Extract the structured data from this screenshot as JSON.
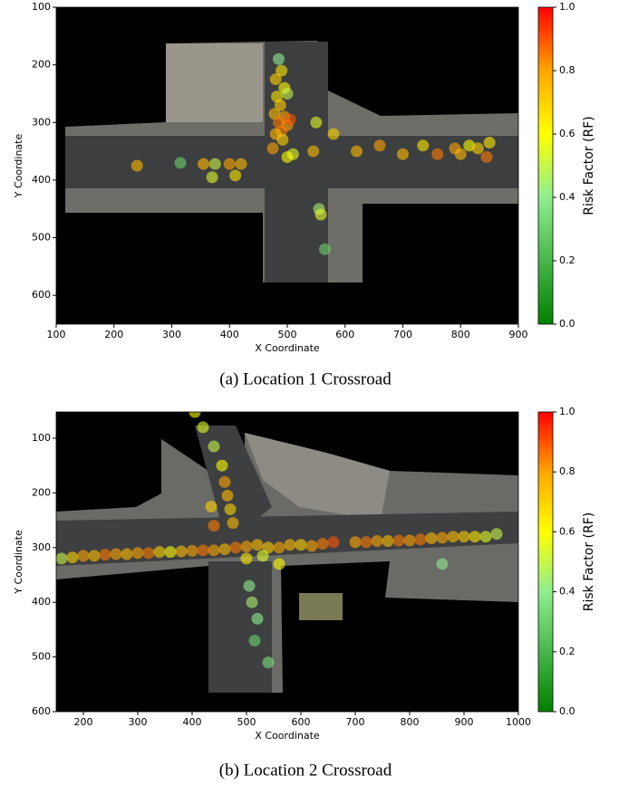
{
  "chart_data": [
    {
      "type": "scatter",
      "caption": "(a) Location 1 Crossroad",
      "x_label": "X Coordinate",
      "y_label": "Y Coordinate",
      "xlim": [
        100,
        900
      ],
      "ylim": [
        650,
        100
      ],
      "xticks": [
        100,
        200,
        300,
        400,
        500,
        600,
        700,
        800,
        900
      ],
      "yticks": [
        100,
        200,
        300,
        400,
        500,
        600
      ],
      "colorbar": {
        "label": "Risk Factor (RF)",
        "lim": [
          0,
          1
        ],
        "ticks": [
          {
            "value": 0,
            "label": "0.0"
          },
          {
            "value": 0.2,
            "label": "0.2"
          },
          {
            "value": 0.4,
            "label": "0.4"
          },
          {
            "value": 0.6,
            "label": "0.6"
          },
          {
            "value": 0.8,
            "label": "0.8"
          },
          {
            "value": 1,
            "label": "1.0"
          }
        ]
      },
      "x": [
        485,
        490,
        480,
        495,
        482,
        500,
        488,
        478,
        495,
        485,
        500,
        490,
        480,
        505,
        492,
        475,
        510,
        545,
        500,
        240,
        315,
        355,
        375,
        400,
        420,
        370,
        410,
        555,
        558,
        565,
        620,
        660,
        700,
        735,
        760,
        790,
        800,
        815,
        830,
        850,
        845,
        580,
        550
      ],
      "values": [
        190,
        210,
        225,
        240,
        255,
        250,
        270,
        285,
        290,
        300,
        305,
        315,
        320,
        295,
        330,
        345,
        355,
        350,
        360,
        375,
        370,
        372,
        372,
        372,
        372,
        395,
        392,
        450,
        460,
        520,
        350,
        340,
        355,
        340,
        355,
        345,
        355,
        340,
        345,
        335,
        360,
        320,
        300
      ],
      "risk": [
        0.4,
        0.65,
        0.7,
        0.6,
        0.65,
        0.5,
        0.7,
        0.75,
        0.8,
        0.85,
        0.8,
        0.85,
        0.75,
        0.9,
        0.7,
        0.8,
        0.55,
        0.75,
        0.6,
        0.75,
        0.3,
        0.75,
        0.5,
        0.8,
        0.75,
        0.55,
        0.65,
        0.45,
        0.55,
        0.3,
        0.75,
        0.8,
        0.75,
        0.65,
        0.85,
        0.8,
        0.75,
        0.6,
        0.7,
        0.65,
        0.85,
        0.7,
        0.55
      ]
    },
    {
      "type": "scatter",
      "caption": "(b) Location 2 Crossroad",
      "x_label": "X Coordinate",
      "y_label": "Y Coordinate",
      "xlim": [
        150,
        1000
      ],
      "ylim": [
        600,
        52
      ],
      "xticks": [
        200,
        300,
        400,
        500,
        600,
        700,
        800,
        900,
        1000
      ],
      "yticks": [
        100,
        200,
        300,
        400,
        500,
        600
      ],
      "colorbar": {
        "label": "Risk Factor (RF)",
        "lim": [
          0,
          1
        ],
        "ticks": [
          {
            "value": 0,
            "label": "0.0"
          },
          {
            "value": 0.2,
            "label": "0.2"
          },
          {
            "value": 0.4,
            "label": "0.4"
          },
          {
            "value": 0.6,
            "label": "0.6"
          },
          {
            "value": 0.8,
            "label": "0.8"
          },
          {
            "value": 1,
            "label": "1.0"
          }
        ]
      },
      "x": [
        160,
        180,
        200,
        220,
        240,
        260,
        280,
        300,
        320,
        340,
        360,
        380,
        400,
        420,
        440,
        460,
        480,
        500,
        520,
        540,
        560,
        580,
        600,
        620,
        640,
        660,
        700,
        720,
        740,
        760,
        780,
        800,
        820,
        840,
        860,
        880,
        900,
        920,
        940,
        960,
        405,
        420,
        440,
        455,
        460,
        465,
        470,
        475,
        440,
        435,
        500,
        505,
        510,
        520,
        515,
        540,
        530,
        860,
        560
      ],
      "values": [
        320,
        318,
        315,
        315,
        313,
        312,
        312,
        310,
        310,
        308,
        308,
        307,
        306,
        305,
        305,
        303,
        300,
        298,
        295,
        300,
        300,
        295,
        295,
        297,
        293,
        290,
        290,
        290,
        288,
        288,
        287,
        287,
        285,
        283,
        282,
        280,
        280,
        280,
        280,
        275,
        52,
        80,
        115,
        150,
        180,
        205,
        230,
        255,
        260,
        225,
        320,
        370,
        400,
        430,
        470,
        510,
        315,
        330,
        330
      ],
      "risk": [
        0.5,
        0.7,
        0.8,
        0.75,
        0.85,
        0.8,
        0.75,
        0.8,
        0.85,
        0.7,
        0.6,
        0.75,
        0.8,
        0.85,
        0.8,
        0.75,
        0.85,
        0.8,
        0.75,
        0.7,
        0.8,
        0.75,
        0.7,
        0.8,
        0.85,
        0.9,
        0.8,
        0.85,
        0.8,
        0.75,
        0.85,
        0.8,
        0.85,
        0.75,
        0.8,
        0.75,
        0.7,
        0.65,
        0.55,
        0.5,
        0.6,
        0.55,
        0.5,
        0.6,
        0.8,
        0.75,
        0.7,
        0.75,
        0.85,
        0.7,
        0.65,
        0.4,
        0.45,
        0.4,
        0.3,
        0.35,
        0.55,
        0.4,
        0.6
      ]
    }
  ]
}
